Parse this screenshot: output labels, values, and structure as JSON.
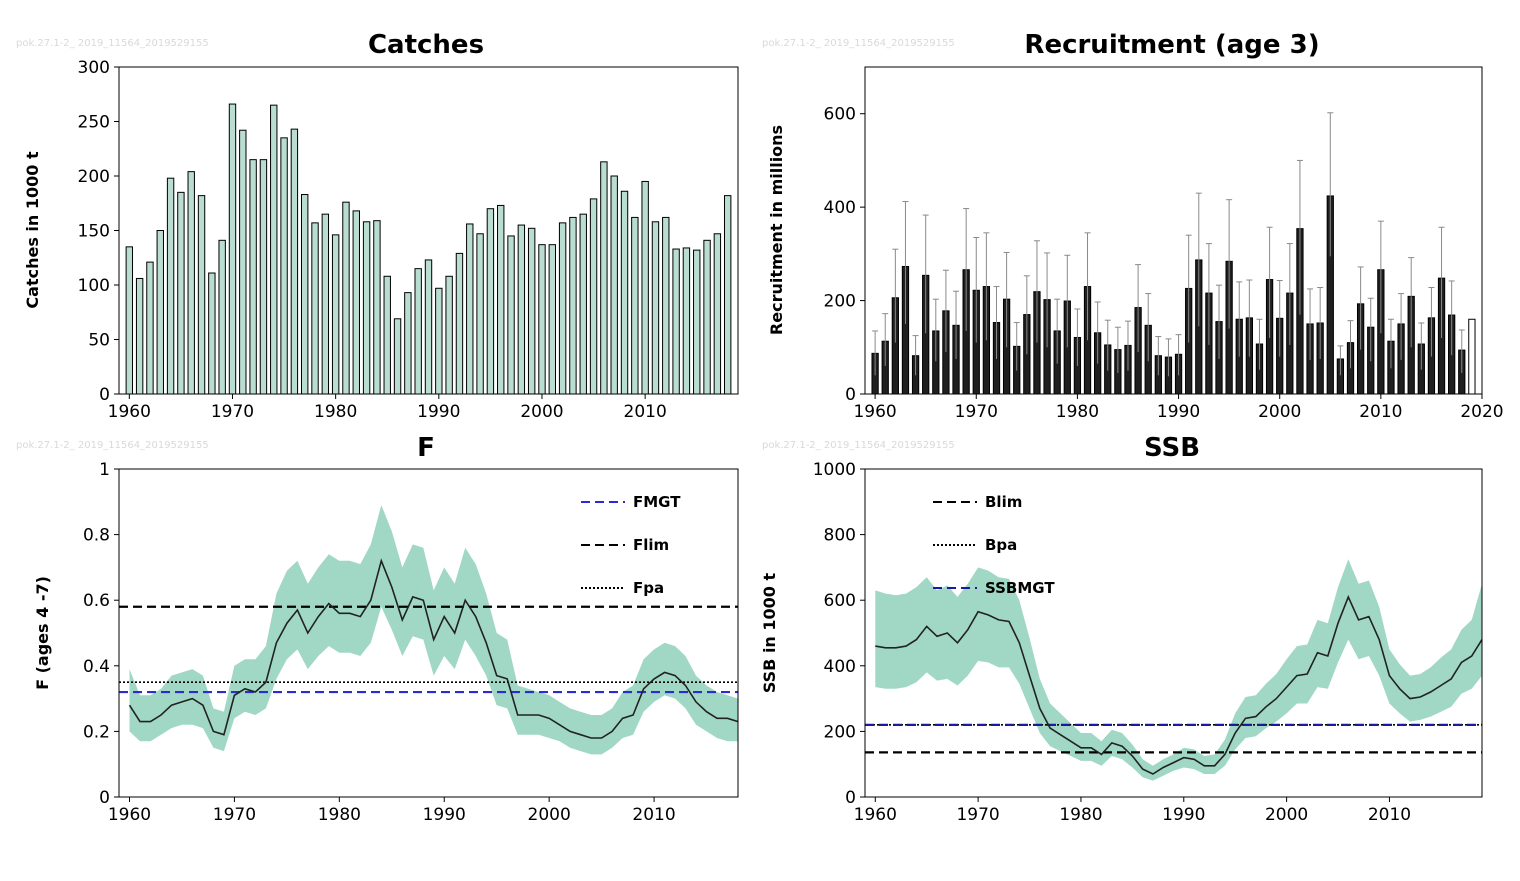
{
  "colors": {
    "bar_fill": "#b9ddd0",
    "band_fill": "#8fd1bb",
    "recruit_bar": "#1f1f1f",
    "fmgt_line": "#2b2bd6",
    "ssbmgt_line": "#1a1aa0",
    "ref_line": "#000000"
  },
  "watermark": "pok.27.1-2_ 2019_11564_2019529155",
  "chart_data": [
    {
      "id": "catches",
      "type": "bar",
      "title": "Catches",
      "xlabel": "",
      "ylabel": "Catches in 1000 t",
      "xlim": [
        1959,
        2019
      ],
      "ylim": [
        0,
        300
      ],
      "xticks": [
        1960,
        1970,
        1980,
        1990,
        2000,
        2010
      ],
      "yticks": [
        0,
        50,
        100,
        150,
        200,
        250,
        300
      ],
      "x": [
        1960,
        1961,
        1962,
        1963,
        1964,
        1965,
        1966,
        1967,
        1968,
        1969,
        1970,
        1971,
        1972,
        1973,
        1974,
        1975,
        1976,
        1977,
        1978,
        1979,
        1980,
        1981,
        1982,
        1983,
        1984,
        1985,
        1986,
        1987,
        1988,
        1989,
        1990,
        1991,
        1992,
        1993,
        1994,
        1995,
        1996,
        1997,
        1998,
        1999,
        2000,
        2001,
        2002,
        2003,
        2004,
        2005,
        2006,
        2007,
        2008,
        2009,
        2010,
        2011,
        2012,
        2013,
        2014,
        2015,
        2016,
        2017,
        2018
      ],
      "values": [
        135,
        106,
        121,
        150,
        198,
        185,
        204,
        182,
        111,
        141,
        266,
        242,
        215,
        215,
        265,
        235,
        243,
        183,
        157,
        165,
        146,
        176,
        168,
        158,
        159,
        108,
        69,
        93,
        115,
        123,
        97,
        108,
        129,
        156,
        147,
        170,
        173,
        145,
        155,
        152,
        137,
        137,
        157,
        162,
        165,
        179,
        213,
        200,
        186,
        162,
        195,
        158,
        162,
        133,
        134,
        132,
        141,
        147,
        182
      ],
      "grid": false
    },
    {
      "id": "recruitment",
      "type": "bar",
      "title": "Recruitment (age 3)",
      "xlabel": "",
      "ylabel": "Recruitment in millions",
      "xlim": [
        1959,
        2020
      ],
      "ylim": [
        0,
        700
      ],
      "xticks": [
        1960,
        1970,
        1980,
        1990,
        2000,
        2010,
        2020
      ],
      "yticks": [
        0,
        200,
        400,
        600
      ],
      "x": [
        1960,
        1961,
        1962,
        1963,
        1964,
        1965,
        1966,
        1967,
        1968,
        1969,
        1970,
        1971,
        1972,
        1973,
        1974,
        1975,
        1976,
        1977,
        1978,
        1979,
        1980,
        1981,
        1982,
        1983,
        1984,
        1985,
        1986,
        1987,
        1988,
        1989,
        1990,
        1991,
        1992,
        1993,
        1994,
        1995,
        1996,
        1997,
        1998,
        1999,
        2000,
        2001,
        2002,
        2003,
        2004,
        2005,
        2006,
        2007,
        2008,
        2009,
        2010,
        2011,
        2012,
        2013,
        2014,
        2015,
        2016,
        2017,
        2018,
        2019
      ],
      "values": [
        87,
        113,
        206,
        273,
        82,
        254,
        135,
        178,
        147,
        266,
        222,
        230,
        153,
        203,
        102,
        170,
        219,
        202,
        135,
        199,
        121,
        230,
        131,
        105,
        95,
        104,
        185,
        147,
        82,
        79,
        85,
        226,
        287,
        216,
        155,
        284,
        160,
        163,
        107,
        245,
        162,
        216,
        354,
        150,
        152,
        424,
        75,
        110,
        193,
        143,
        266,
        113,
        150,
        209,
        107,
        163,
        248,
        169,
        94,
        160
      ],
      "upper": [
        135,
        172,
        310,
        412,
        125,
        383,
        203,
        265,
        220,
        397,
        335,
        345,
        230,
        303,
        153,
        253,
        328,
        302,
        203,
        297,
        182,
        345,
        197,
        158,
        143,
        156,
        277,
        215,
        123,
        118,
        127,
        340,
        430,
        322,
        233,
        416,
        240,
        244,
        160,
        357,
        243,
        322,
        500,
        225,
        228,
        602,
        103,
        157,
        272,
        205,
        370,
        160,
        215,
        292,
        152,
        228,
        357,
        242,
        137,
        160
      ],
      "lower": [
        40,
        60,
        110,
        150,
        40,
        130,
        70,
        90,
        75,
        135,
        110,
        115,
        75,
        100,
        50,
        85,
        110,
        100,
        65,
        100,
        60,
        115,
        65,
        50,
        45,
        50,
        90,
        70,
        40,
        38,
        40,
        110,
        145,
        105,
        75,
        140,
        80,
        80,
        52,
        120,
        80,
        105,
        170,
        73,
        75,
        295,
        40,
        55,
        95,
        70,
        130,
        55,
        73,
        100,
        52,
        80,
        120,
        83,
        45,
        160
      ],
      "last_value_open_bar": true,
      "grid": false
    },
    {
      "id": "f",
      "type": "line",
      "title": "F",
      "xlabel": "",
      "ylabel": "F (ages 4 -7)",
      "xlim": [
        1959,
        2018
      ],
      "ylim": [
        0,
        1
      ],
      "xticks": [
        1960,
        1970,
        1980,
        1990,
        2000,
        2010
      ],
      "yticks": [
        0,
        0.2,
        0.4,
        0.6,
        0.8,
        1
      ],
      "x": [
        1960,
        1961,
        1962,
        1963,
        1964,
        1965,
        1966,
        1967,
        1968,
        1969,
        1970,
        1971,
        1972,
        1973,
        1974,
        1975,
        1976,
        1977,
        1978,
        1979,
        1980,
        1981,
        1982,
        1983,
        1984,
        1985,
        1986,
        1987,
        1988,
        1989,
        1990,
        1991,
        1992,
        1993,
        1994,
        1995,
        1996,
        1997,
        1998,
        1999,
        2000,
        2001,
        2002,
        2003,
        2004,
        2005,
        2006,
        2007,
        2008,
        2009,
        2010,
        2011,
        2012,
        2013,
        2014,
        2015,
        2016,
        2017,
        2018
      ],
      "series": [
        {
          "values": [
            0.28,
            0.23,
            0.23,
            0.25,
            0.28,
            0.29,
            0.3,
            0.28,
            0.2,
            0.19,
            0.31,
            0.33,
            0.32,
            0.35,
            0.47,
            0.53,
            0.57,
            0.5,
            0.55,
            0.59,
            0.56,
            0.56,
            0.55,
            0.6,
            0.72,
            0.64,
            0.54,
            0.61,
            0.6,
            0.48,
            0.55,
            0.5,
            0.6,
            0.55,
            0.47,
            0.37,
            0.36,
            0.25,
            0.25,
            0.25,
            0.24,
            0.22,
            0.2,
            0.19,
            0.18,
            0.18,
            0.2,
            0.24,
            0.25,
            0.33,
            0.36,
            0.38,
            0.37,
            0.34,
            0.29,
            0.26,
            0.24,
            0.24,
            0.23
          ],
          "upper": [
            0.39,
            0.31,
            0.31,
            0.33,
            0.37,
            0.38,
            0.39,
            0.37,
            0.27,
            0.26,
            0.4,
            0.42,
            0.42,
            0.46,
            0.62,
            0.69,
            0.72,
            0.65,
            0.7,
            0.74,
            0.72,
            0.72,
            0.71,
            0.77,
            0.89,
            0.81,
            0.7,
            0.77,
            0.76,
            0.63,
            0.7,
            0.65,
            0.76,
            0.71,
            0.62,
            0.5,
            0.48,
            0.34,
            0.33,
            0.32,
            0.31,
            0.29,
            0.27,
            0.26,
            0.25,
            0.25,
            0.27,
            0.32,
            0.34,
            0.42,
            0.45,
            0.47,
            0.46,
            0.43,
            0.37,
            0.34,
            0.32,
            0.31,
            0.3
          ],
          "lower": [
            0.2,
            0.17,
            0.17,
            0.19,
            0.21,
            0.22,
            0.22,
            0.21,
            0.15,
            0.14,
            0.24,
            0.26,
            0.25,
            0.27,
            0.36,
            0.42,
            0.45,
            0.39,
            0.43,
            0.46,
            0.44,
            0.44,
            0.43,
            0.47,
            0.58,
            0.51,
            0.43,
            0.49,
            0.48,
            0.37,
            0.43,
            0.39,
            0.48,
            0.43,
            0.37,
            0.28,
            0.27,
            0.19,
            0.19,
            0.19,
            0.18,
            0.17,
            0.15,
            0.14,
            0.13,
            0.13,
            0.15,
            0.18,
            0.19,
            0.26,
            0.29,
            0.31,
            0.3,
            0.27,
            0.22,
            0.2,
            0.18,
            0.17,
            0.17
          ]
        }
      ],
      "reference_lines": [
        {
          "name": "FMGT",
          "value": 0.32,
          "style": "dashed",
          "color": "#2b2bd6"
        },
        {
          "name": "Flim",
          "value": 0.58,
          "style": "dashed",
          "color": "#000000"
        },
        {
          "name": "Fpa",
          "value": 0.35,
          "style": "dotted",
          "color": "#000000"
        }
      ],
      "legend_placement": "top-right",
      "grid": false
    },
    {
      "id": "ssb",
      "type": "line",
      "title": "SSB",
      "xlabel": "",
      "ylabel": "SSB in 1000 t",
      "xlim": [
        1959,
        2019
      ],
      "ylim": [
        0,
        1000
      ],
      "xticks": [
        1960,
        1970,
        1980,
        1990,
        2000,
        2010
      ],
      "yticks": [
        0,
        200,
        400,
        600,
        800,
        1000
      ],
      "x": [
        1960,
        1961,
        1962,
        1963,
        1964,
        1965,
        1966,
        1967,
        1968,
        1969,
        1970,
        1971,
        1972,
        1973,
        1974,
        1975,
        1976,
        1977,
        1978,
        1979,
        1980,
        1981,
        1982,
        1983,
        1984,
        1985,
        1986,
        1987,
        1988,
        1989,
        1990,
        1991,
        1992,
        1993,
        1994,
        1995,
        1996,
        1997,
        1998,
        1999,
        2000,
        2001,
        2002,
        2003,
        2004,
        2005,
        2006,
        2007,
        2008,
        2009,
        2010,
        2011,
        2012,
        2013,
        2014,
        2015,
        2016,
        2017,
        2018,
        2019
      ],
      "series": [
        {
          "values": [
            460,
            455,
            455,
            460,
            480,
            520,
            490,
            500,
            470,
            510,
            565,
            555,
            540,
            535,
            470,
            370,
            270,
            210,
            190,
            170,
            150,
            150,
            130,
            165,
            155,
            125,
            85,
            70,
            90,
            105,
            120,
            115,
            95,
            95,
            130,
            195,
            240,
            245,
            275,
            300,
            335,
            370,
            375,
            440,
            430,
            530,
            610,
            540,
            550,
            480,
            370,
            330,
            300,
            305,
            320,
            340,
            360,
            410,
            430,
            480
          ],
          "upper": [
            630,
            620,
            615,
            620,
            640,
            670,
            630,
            645,
            610,
            650,
            700,
            690,
            670,
            665,
            600,
            485,
            360,
            285,
            255,
            225,
            195,
            195,
            170,
            205,
            195,
            160,
            115,
            95,
            115,
            130,
            150,
            145,
            125,
            130,
            175,
            255,
            305,
            310,
            345,
            375,
            420,
            460,
            465,
            540,
            530,
            640,
            725,
            650,
            660,
            580,
            450,
            405,
            370,
            375,
            395,
            425,
            450,
            510,
            540,
            650
          ],
          "lower": [
            335,
            330,
            330,
            335,
            350,
            380,
            355,
            360,
            340,
            370,
            415,
            410,
            395,
            395,
            345,
            270,
            195,
            155,
            140,
            125,
            110,
            110,
            95,
            125,
            115,
            90,
            60,
            50,
            65,
            80,
            90,
            85,
            70,
            70,
            95,
            145,
            180,
            185,
            210,
            230,
            255,
            285,
            285,
            335,
            330,
            410,
            480,
            420,
            430,
            370,
            285,
            255,
            230,
            235,
            245,
            260,
            275,
            315,
            330,
            370
          ]
        }
      ],
      "reference_lines": [
        {
          "name": "Blim",
          "value": 136,
          "style": "dashed",
          "color": "#000000"
        },
        {
          "name": "Bpa",
          "value": 220,
          "style": "dotted",
          "color": "#000000"
        },
        {
          "name": "SSBMGT",
          "value": 220,
          "style": "dashed",
          "color": "#1a1aa0"
        }
      ],
      "legend_placement": "top-left",
      "grid": false
    }
  ]
}
